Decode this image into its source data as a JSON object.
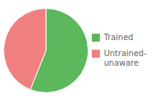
{
  "chart_data": {
    "type": "pie",
    "categories": [
      "Trained",
      "Untrained-\nunaware"
    ],
    "values": [
      56,
      44
    ],
    "colors": [
      "#5cb85c",
      "#f08080"
    ],
    "legend": "right"
  }
}
